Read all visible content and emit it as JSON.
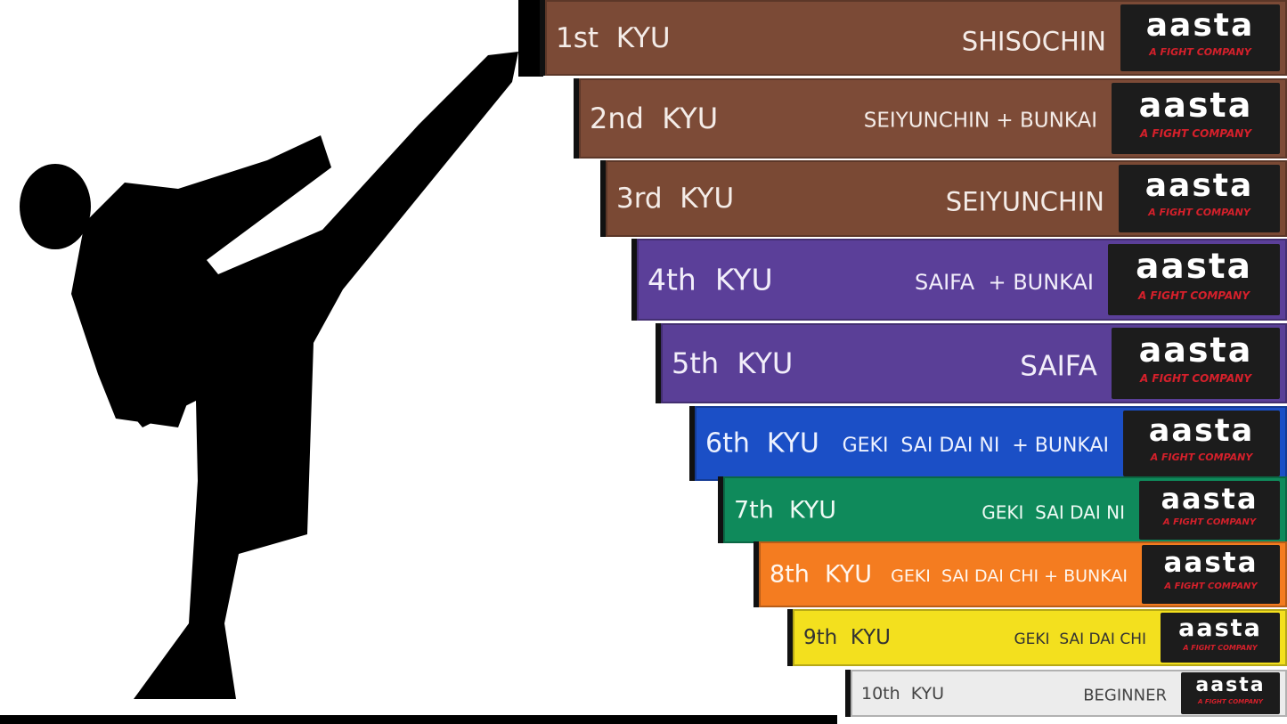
{
  "brand": {
    "name": "aasta",
    "tagline": "A FIGHT COMPANY"
  },
  "belts": [
    {
      "rank": "1st  KYU",
      "kata": "SHISOCHIN",
      "color": "#7b4a36",
      "text_color": "#f4ece8"
    },
    {
      "rank": "2nd  KYU",
      "kata": "SEIYUNCHIN + BUNKAI",
      "color": "#7d4b37",
      "text_color": "#f4ece8"
    },
    {
      "rank": "3rd  KYU",
      "kata": "SEIYUNCHIN",
      "color": "#7a4934",
      "text_color": "#f4ece8"
    },
    {
      "rank": "4th  KYU",
      "kata": "SAIFA  + BUNKAI",
      "color": "#5b3f99",
      "text_color": "#f2eefa"
    },
    {
      "rank": "5th  KYU",
      "kata": "SAIFA",
      "color": "#5a3f97",
      "text_color": "#f2eefa"
    },
    {
      "rank": "6th  KYU",
      "kata": "GEKI  SAI DAI NI  + BUNKAI",
      "color": "#1b4fc6",
      "text_color": "#eef2ff"
    },
    {
      "rank": "7th  KYU",
      "kata": "GEKI  SAI DAI NI",
      "color": "#0f8a5b",
      "text_color": "#eefaf4"
    },
    {
      "rank": "8th  KYU",
      "kata": "GEKI  SAI DAI CHI + BUNKAI",
      "color": "#f47c20",
      "text_color": "#fff6ee"
    },
    {
      "rank": "9th  KYU",
      "kata": "GEKI  SAI DAI CHI",
      "color": "#f3e01e",
      "text_color": "#333333"
    },
    {
      "rank": "10th  KYU",
      "kata": "BEGINNER",
      "color": "#ececec",
      "text_color": "#444444"
    }
  ]
}
